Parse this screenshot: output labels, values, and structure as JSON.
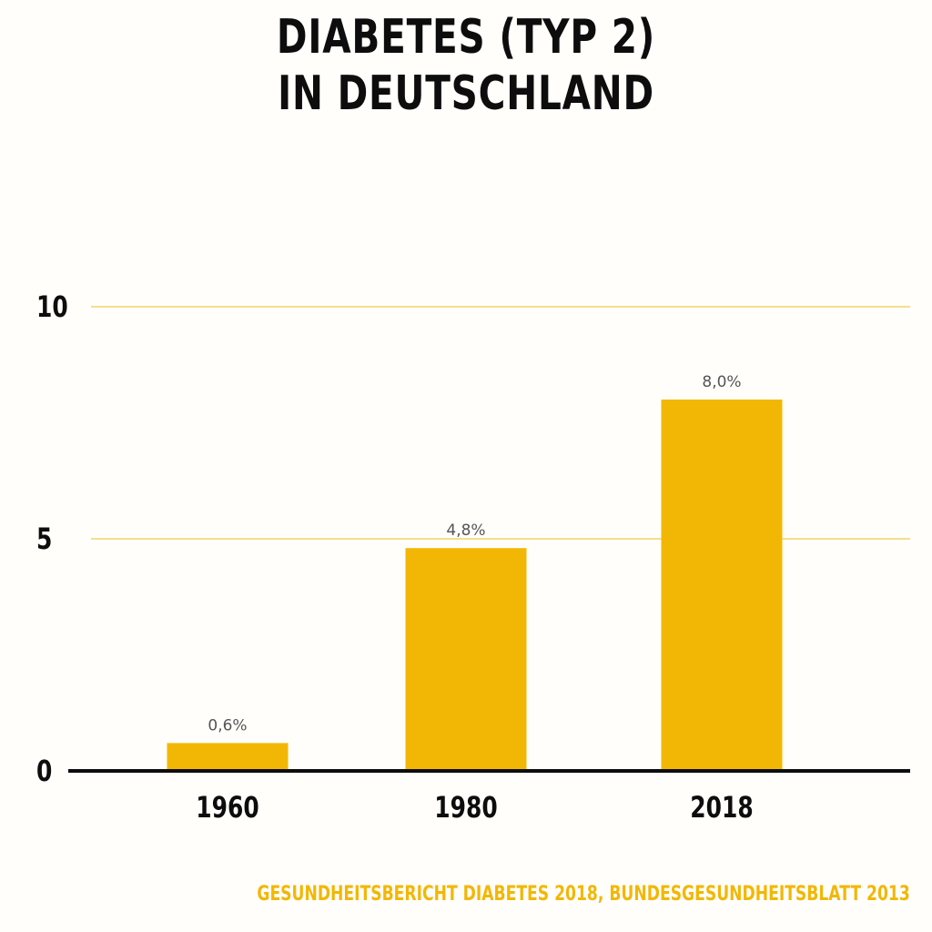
{
  "chart_data": {
    "type": "bar",
    "title_lines": [
      "DIABETES (TYP 2)",
      "IN DEUTSCHLAND"
    ],
    "categories": [
      "1960",
      "1980",
      "2018"
    ],
    "values": [
      0.6,
      4.8,
      8.0
    ],
    "data_labels": [
      "0,6%",
      "4,8%",
      "8,0%"
    ],
    "yticks": [
      0,
      5,
      10
    ],
    "ylim": [
      0,
      10
    ],
    "grid": true,
    "colors": {
      "bar": "#f2b705",
      "grid": "#f5e08a",
      "axis": "#0d0d0d",
      "source_text": "#f2b705"
    },
    "source": "GESUNDHEITSBERICHT DIABETES 2018, BUNDESGESUNDHEITSBLATT 2013"
  }
}
